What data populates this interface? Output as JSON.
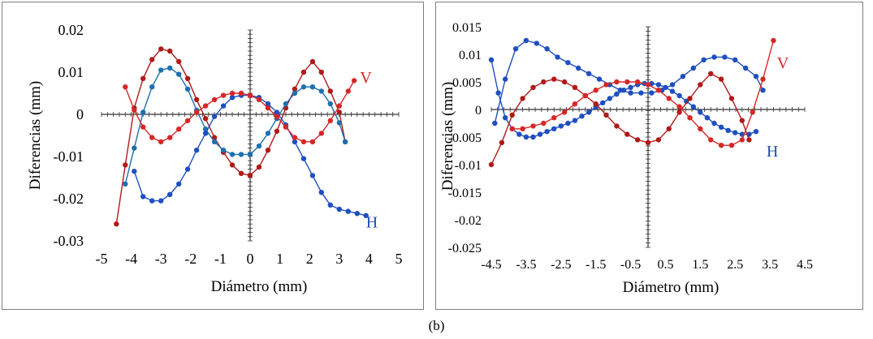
{
  "caption": "(b)",
  "colors": {
    "red": "#d62728",
    "dark_red": "#b01a1a",
    "blue": "#1f4fbf",
    "teal": "#1f6fb0"
  },
  "chart_data": [
    {
      "type": "line",
      "xlabel": "Diámetro (mm)",
      "ylabel": "Diferencias (mm)",
      "xlim": [
        -5,
        5
      ],
      "ylim": [
        -0.03,
        0.02
      ],
      "x_ticks": [
        {
          "v": -5,
          "label": "-5"
        },
        {
          "v": -4,
          "label": "-4"
        },
        {
          "v": -3,
          "label": "-3"
        },
        {
          "v": -2,
          "label": "-2"
        },
        {
          "v": -1,
          "label": "-1"
        },
        {
          "v": 0,
          "label": "0"
        },
        {
          "v": 1,
          "label": "1"
        },
        {
          "v": 2,
          "label": "2"
        },
        {
          "v": 3,
          "label": "3"
        },
        {
          "v": 4,
          "label": "4"
        },
        {
          "v": 5,
          "label": "5"
        }
      ],
      "y_ticks": [
        {
          "v": 0.02,
          "label": "0.02"
        },
        {
          "v": 0.01,
          "label": "0.01"
        },
        {
          "v": 0,
          "label": "0"
        },
        {
          "v": -0.01,
          "label": "-0.01"
        },
        {
          "v": -0.02,
          "label": "-0.02"
        },
        {
          "v": -0.03,
          "label": "-0.03"
        }
      ],
      "annotations": [
        {
          "text": "V",
          "x": 3.7,
          "y": 0.0075,
          "color": "red"
        },
        {
          "text": "H",
          "x": 3.9,
          "y": -0.0268,
          "color": "blue"
        }
      ],
      "series": [
        {
          "color": "dark_red",
          "x": [
            -4.5,
            -4.2,
            -3.9,
            -3.6,
            -3.3,
            -3.0,
            -2.7,
            -2.4,
            -2.1,
            -1.8,
            -1.5,
            -1.2,
            -0.9,
            -0.6,
            -0.3,
            0.0,
            0.3,
            0.6,
            0.9,
            1.2,
            1.5,
            1.8,
            2.1,
            2.4,
            2.7,
            3.0,
            3.2
          ],
          "y": [
            -0.026,
            -0.012,
            0.0015,
            0.0085,
            0.013,
            0.0155,
            0.015,
            0.0125,
            0.0085,
            0.0035,
            -0.001,
            -0.0055,
            -0.009,
            -0.012,
            -0.014,
            -0.0145,
            -0.0125,
            -0.0085,
            -0.004,
            0.0015,
            0.006,
            0.01,
            0.0125,
            0.01,
            0.0055,
            0.0005,
            -0.0065
          ]
        },
        {
          "color": "teal",
          "x": [
            -4.2,
            -3.9,
            -3.6,
            -3.3,
            -3.0,
            -2.7,
            -2.4,
            -2.1,
            -1.8,
            -1.5,
            -1.2,
            -0.9,
            -0.6,
            -0.3,
            0.0,
            0.3,
            0.6,
            0.9,
            1.2,
            1.5,
            1.8,
            2.1,
            2.4,
            2.7,
            3.0,
            3.2
          ],
          "y": [
            -0.0165,
            -0.008,
            0.0005,
            0.0065,
            0.0105,
            0.011,
            0.0095,
            0.006,
            0.001,
            -0.0035,
            -0.0065,
            -0.0085,
            -0.0095,
            -0.0095,
            -0.0095,
            -0.0075,
            -0.0045,
            -0.001,
            0.0025,
            0.005,
            0.0065,
            0.0065,
            0.0055,
            0.0025,
            -0.002,
            -0.0065
          ]
        },
        {
          "color": "blue",
          "x": [
            -3.9,
            -3.6,
            -3.3,
            -3.0,
            -2.7,
            -2.4,
            -2.1,
            -1.8,
            -1.5,
            -1.2,
            -0.9,
            -0.6,
            -0.3,
            0.0,
            0.3,
            0.6,
            0.9,
            1.2,
            1.5,
            1.8,
            2.1,
            2.4,
            2.7,
            3.0,
            3.3,
            3.6,
            3.9
          ],
          "y": [
            -0.0135,
            -0.0195,
            -0.0205,
            -0.0205,
            -0.019,
            -0.0165,
            -0.013,
            -0.0085,
            -0.0045,
            -0.0005,
            0.002,
            0.004,
            0.0045,
            0.0045,
            0.004,
            0.0025,
            0.0005,
            -0.0025,
            -0.0065,
            -0.0105,
            -0.0145,
            -0.0185,
            -0.0215,
            -0.0225,
            -0.023,
            -0.0235,
            -0.024
          ]
        },
        {
          "color": "red",
          "x": [
            -4.2,
            -3.9,
            -3.6,
            -3.3,
            -3.0,
            -2.7,
            -2.4,
            -2.1,
            -1.8,
            -1.5,
            -1.2,
            -0.9,
            -0.6,
            -0.3,
            0.0,
            0.3,
            0.6,
            0.9,
            1.2,
            1.5,
            1.8,
            2.1,
            2.4,
            2.7,
            3.0,
            3.3,
            3.5
          ],
          "y": [
            0.0065,
            0.001,
            -0.003,
            -0.0055,
            -0.0065,
            -0.0055,
            -0.0035,
            -0.0015,
            0.0005,
            0.002,
            0.0035,
            0.0045,
            0.005,
            0.005,
            0.0045,
            0.0035,
            0.0015,
            -0.0005,
            -0.003,
            -0.0055,
            -0.0065,
            -0.0065,
            -0.0045,
            -0.0015,
            0.002,
            0.0055,
            0.008
          ]
        }
      ]
    },
    {
      "type": "line",
      "xlabel": "Diámetro (mm)",
      "ylabel": "Diferencias (mm)",
      "xlim": [
        -4.5,
        4.5
      ],
      "ylim": [
        -0.025,
        0.015
      ],
      "x_ticks": [
        {
          "v": -4.5,
          "label": "-4.5"
        },
        {
          "v": -3.5,
          "label": "-3.5"
        },
        {
          "v": -2.5,
          "label": "-2.5"
        },
        {
          "v": -1.5,
          "label": "-1.5"
        },
        {
          "v": -0.5,
          "label": "-0.5"
        },
        {
          "v": 0.5,
          "label": "0.5"
        },
        {
          "v": 1.5,
          "label": "1.5"
        },
        {
          "v": 2.5,
          "label": "2.5"
        },
        {
          "v": 3.5,
          "label": "3.5"
        },
        {
          "v": 4.5,
          "label": "4.5"
        }
      ],
      "y_ticks": [
        {
          "v": 0.015,
          "label": "0.015"
        },
        {
          "v": 0.01,
          "label": "0.01"
        },
        {
          "v": 0.005,
          "label": "0.005"
        },
        {
          "v": 0,
          "label": "0"
        },
        {
          "v": -0.005,
          "label": "-0.005"
        },
        {
          "v": -0.01,
          "label": "-0.01"
        },
        {
          "v": -0.015,
          "label": "-0.015"
        },
        {
          "v": -0.02,
          "label": "-0.02"
        },
        {
          "v": -0.025,
          "label": "-0.025"
        }
      ],
      "annotations": [
        {
          "text": "V",
          "x": 3.7,
          "y": 0.0075,
          "color": "red"
        },
        {
          "text": "H",
          "x": 3.4,
          "y": -0.0085,
          "color": "blue"
        }
      ],
      "series": [
        {
          "color": "blue",
          "x": [
            -4.5,
            -4.3,
            -4.1,
            -3.9,
            -3.7,
            -3.5,
            -3.3,
            -3.1,
            -2.9,
            -2.7,
            -2.5,
            -2.3,
            -2.1,
            -1.9,
            -1.7,
            -1.5,
            -1.3,
            -1.1,
            -0.9,
            -0.7,
            -0.5,
            -0.3,
            -0.1,
            0.1,
            0.3,
            0.5,
            0.7,
            0.9,
            1.1,
            1.3,
            1.5,
            1.7,
            1.9,
            2.1,
            2.3,
            2.5,
            2.7,
            2.9,
            3.1
          ],
          "y": [
            0.009,
            0.003,
            -0.0015,
            -0.0035,
            -0.0045,
            -0.005,
            -0.005,
            -0.0045,
            -0.004,
            -0.0035,
            -0.003,
            -0.0025,
            -0.002,
            -0.0012,
            -0.0005,
            0.0005,
            0.0012,
            0.002,
            0.0028,
            0.0035,
            0.004,
            0.0045,
            0.0047,
            0.0047,
            0.0045,
            0.004,
            0.0033,
            0.0025,
            0.0015,
            0.0005,
            -0.0005,
            -0.0015,
            -0.0025,
            -0.0032,
            -0.0038,
            -0.0042,
            -0.0045,
            -0.0045,
            -0.004
          ]
        },
        {
          "color": "blue",
          "x": [
            -4.4,
            -4.1,
            -3.8,
            -3.5,
            -3.2,
            -2.9,
            -2.6,
            -2.3,
            -2.0,
            -1.7,
            -1.4,
            -1.1,
            -0.8,
            -0.5,
            -0.2,
            0.1,
            0.4,
            0.7,
            1.0,
            1.3,
            1.6,
            1.9,
            2.2,
            2.5,
            2.8,
            3.1,
            3.3
          ],
          "y": [
            -0.0025,
            0.0055,
            0.011,
            0.0125,
            0.012,
            0.011,
            0.0095,
            0.0085,
            0.0075,
            0.0065,
            0.0055,
            0.0045,
            0.0035,
            0.003,
            0.003,
            0.003,
            0.0035,
            0.0045,
            0.006,
            0.0075,
            0.009,
            0.0095,
            0.0095,
            0.009,
            0.0075,
            0.006,
            0.0035
          ]
        },
        {
          "color": "dark_red",
          "x": [
            -4.5,
            -4.2,
            -3.9,
            -3.6,
            -3.3,
            -3.0,
            -2.7,
            -2.4,
            -2.1,
            -1.8,
            -1.5,
            -1.2,
            -0.9,
            -0.6,
            -0.3,
            0.0,
            0.3,
            0.6,
            0.9,
            1.2,
            1.5,
            1.8,
            2.1,
            2.4,
            2.7,
            2.9
          ],
          "y": [
            -0.01,
            -0.006,
            -0.001,
            0.002,
            0.004,
            0.005,
            0.0055,
            0.005,
            0.004,
            0.0025,
            0.001,
            -0.001,
            -0.003,
            -0.0045,
            -0.0055,
            -0.006,
            -0.0055,
            -0.0035,
            -0.0005,
            0.002,
            0.0045,
            0.0065,
            0.0055,
            0.002,
            -0.002,
            -0.0055
          ]
        },
        {
          "color": "red",
          "x": [
            -3.9,
            -3.6,
            -3.3,
            -3.0,
            -2.7,
            -2.4,
            -2.1,
            -1.8,
            -1.5,
            -1.2,
            -0.9,
            -0.6,
            -0.3,
            0.0,
            0.3,
            0.6,
            0.9,
            1.2,
            1.5,
            1.8,
            2.1,
            2.4,
            2.7,
            3.0,
            3.3,
            3.6
          ],
          "y": [
            -0.0035,
            -0.0035,
            -0.003,
            -0.0025,
            -0.0015,
            -0.0005,
            0.001,
            0.0025,
            0.0035,
            0.0045,
            0.005,
            0.005,
            0.005,
            0.0045,
            0.0035,
            0.002,
            0.0005,
            -0.0015,
            -0.0035,
            -0.0055,
            -0.0065,
            -0.0065,
            -0.0055,
            -0.0005,
            0.0055,
            0.0125
          ]
        }
      ]
    }
  ]
}
